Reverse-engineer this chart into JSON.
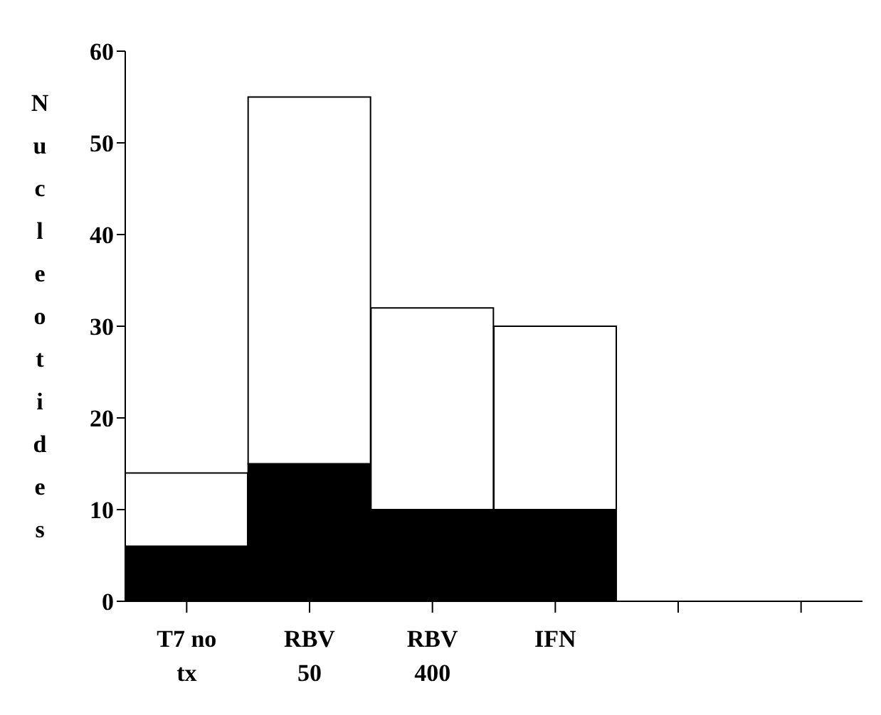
{
  "chart_data": {
    "type": "bar",
    "stacked": true,
    "ylabel": "Nucleotides",
    "categories": [
      "T7 no tx",
      "RBV 50",
      "RBV 400",
      "IFN",
      null,
      null
    ],
    "series": [
      {
        "color": "#000000",
        "values": [
          6,
          15,
          10,
          10,
          0,
          0
        ]
      },
      {
        "color": "#ffffff",
        "values": [
          8,
          40,
          22,
          20,
          0,
          0
        ]
      }
    ],
    "ylim": [
      0,
      60
    ],
    "yticks": [
      0,
      10,
      20,
      30,
      40,
      50,
      60
    ],
    "grid": false,
    "legend": false
  }
}
